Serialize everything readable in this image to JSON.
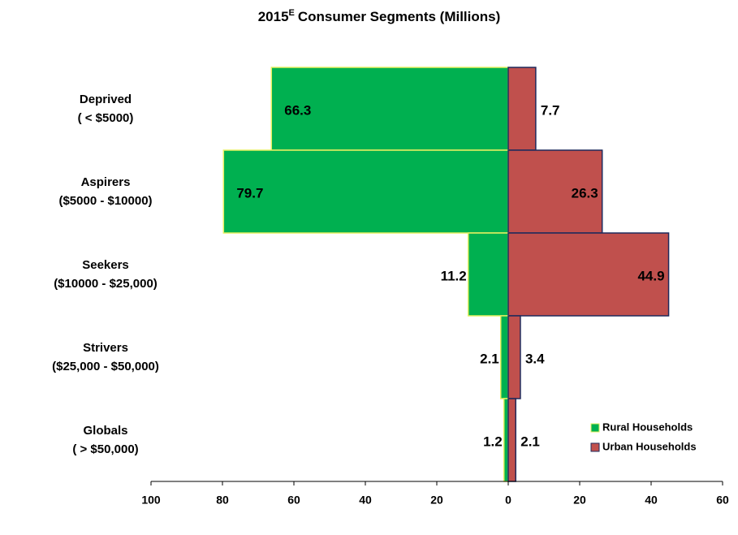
{
  "chart_data": {
    "type": "butterfly-bar",
    "title": {
      "year": "2015",
      "superscript": "E",
      "text": "Consumer Segments (Millions)"
    },
    "categories": [
      [
        "Deprived",
        "( < $5000)"
      ],
      [
        "Aspirers",
        "($5000 - $10000)"
      ],
      [
        "Seekers",
        "($10000 - $25,000)"
      ],
      [
        "Strivers",
        "($25,000 - $50,000)"
      ],
      [
        "Globals",
        "( > $50,000)"
      ]
    ],
    "series": [
      {
        "name": "Rural Households",
        "color": "#00b050",
        "border": "#e6f060",
        "values": [
          -66.3,
          -79.7,
          -11.2,
          -2.1,
          -1.2
        ],
        "value_labels": [
          "66.3",
          "79.7",
          "11.2",
          "2.1",
          "1.2"
        ]
      },
      {
        "name": "Urban Households",
        "color": "#c0504d",
        "border": "#1f2a5c",
        "values": [
          7.7,
          26.3,
          44.9,
          3.4,
          2.1
        ]
      }
    ],
    "xlim": [
      -100,
      60
    ],
    "xticks": [
      {
        "value": -100,
        "label": "100"
      },
      {
        "value": -80,
        "label": "80"
      },
      {
        "value": -60,
        "label": "60"
      },
      {
        "value": -40,
        "label": "40"
      },
      {
        "value": -20,
        "label": "20"
      },
      0,
      20,
      40,
      60
    ],
    "legend": "lower-right"
  }
}
